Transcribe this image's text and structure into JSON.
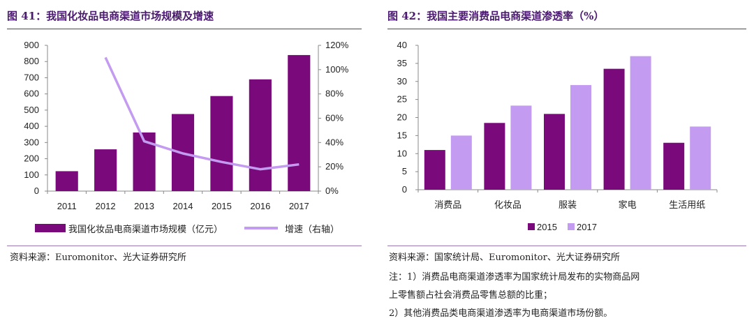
{
  "left": {
    "title": "图 41：我国化妆品电商渠道市场规模及增速",
    "source": "资料来源：Euromonitor、光大证券研究所"
  },
  "right": {
    "title": "图 42：我国主要消费品电商渠道渗透率（%）",
    "source": "资料来源：国家统计局、Euromonitor、光大证券研究所",
    "notes": [
      "注：1）消费品电商渠道渗透率为国家统计局发布的实物商品网",
      "上零售额占社会消费品零售总额的比重；",
      "2）其他消费品类电商渠道渗透率为电商渠道市场份额。"
    ]
  },
  "colors": {
    "dark_purple": "#7a0a7c",
    "light_purple": "#c39bf0",
    "title": "#4a1a6e"
  },
  "chart_data": [
    {
      "type": "bar",
      "categories": [
        "2011",
        "2012",
        "2013",
        "2014",
        "2015",
        "2016",
        "2017"
      ],
      "series": [
        {
          "name": "我国化妆品电商渠道市场规模（亿元）",
          "type": "bar",
          "axis": "left",
          "values": [
            123,
            258,
            362,
            476,
            587,
            690,
            840
          ]
        },
        {
          "name": "增速（右轴）",
          "type": "line",
          "axis": "right",
          "values": [
            null,
            110,
            41,
            31,
            24,
            18,
            22
          ]
        }
      ],
      "ylim": [
        0,
        900
      ],
      "yticks": [
        0,
        100,
        200,
        300,
        400,
        500,
        600,
        700,
        800,
        900
      ],
      "y2lim": [
        0,
        120
      ],
      "y2ticks": [
        "0%",
        "20%",
        "40%",
        "60%",
        "80%",
        "100%",
        "120%"
      ],
      "legend": "bottom",
      "grid": false
    },
    {
      "type": "bar",
      "categories": [
        "消费品",
        "化妆品",
        "服装",
        "家电",
        "生活用纸"
      ],
      "series": [
        {
          "name": "2015",
          "values": [
            11,
            18.5,
            21,
            33.5,
            13
          ]
        },
        {
          "name": "2017",
          "values": [
            15,
            23.3,
            29,
            37,
            17.5
          ]
        }
      ],
      "ylim": [
        0,
        40
      ],
      "yticks": [
        0,
        5,
        10,
        15,
        20,
        25,
        30,
        35,
        40
      ],
      "legend": "bottom",
      "grid": false
    }
  ]
}
